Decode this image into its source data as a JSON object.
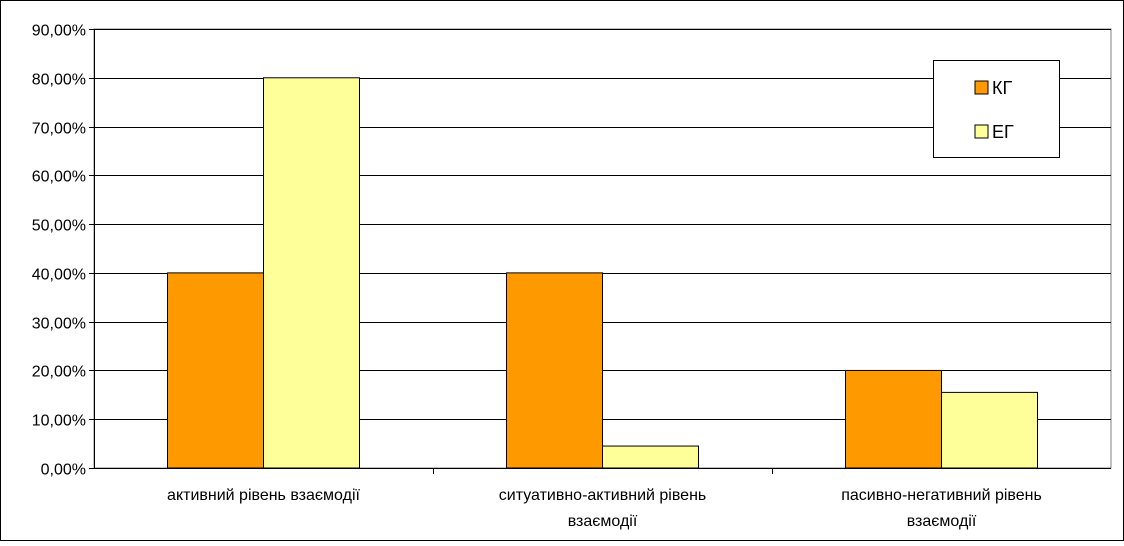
{
  "chart_data": {
    "type": "bar",
    "title": "",
    "xlabel": "",
    "ylabel": "",
    "categories": [
      [
        "активний рівень взаємодії"
      ],
      [
        "ситуативно-активний рівень",
        "взаємодії"
      ],
      [
        "пасивно-негативний рівень",
        "взаємодії"
      ]
    ],
    "series": [
      {
        "name": "КГ",
        "values": [
          40,
          40,
          20
        ],
        "color": "#FF9900"
      },
      {
        "name": "ЕГ",
        "values": [
          80,
          4.5,
          15.5
        ],
        "color": "#FFFF99"
      }
    ],
    "ylim": [
      0,
      90
    ],
    "yticks": [
      "0,00%",
      "10,00%",
      "20,00%",
      "30,00%",
      "40,00%",
      "50,00%",
      "60,00%",
      "70,00%",
      "80,00%",
      "90,00%"
    ],
    "grid": true,
    "legend_position": "top-right"
  }
}
